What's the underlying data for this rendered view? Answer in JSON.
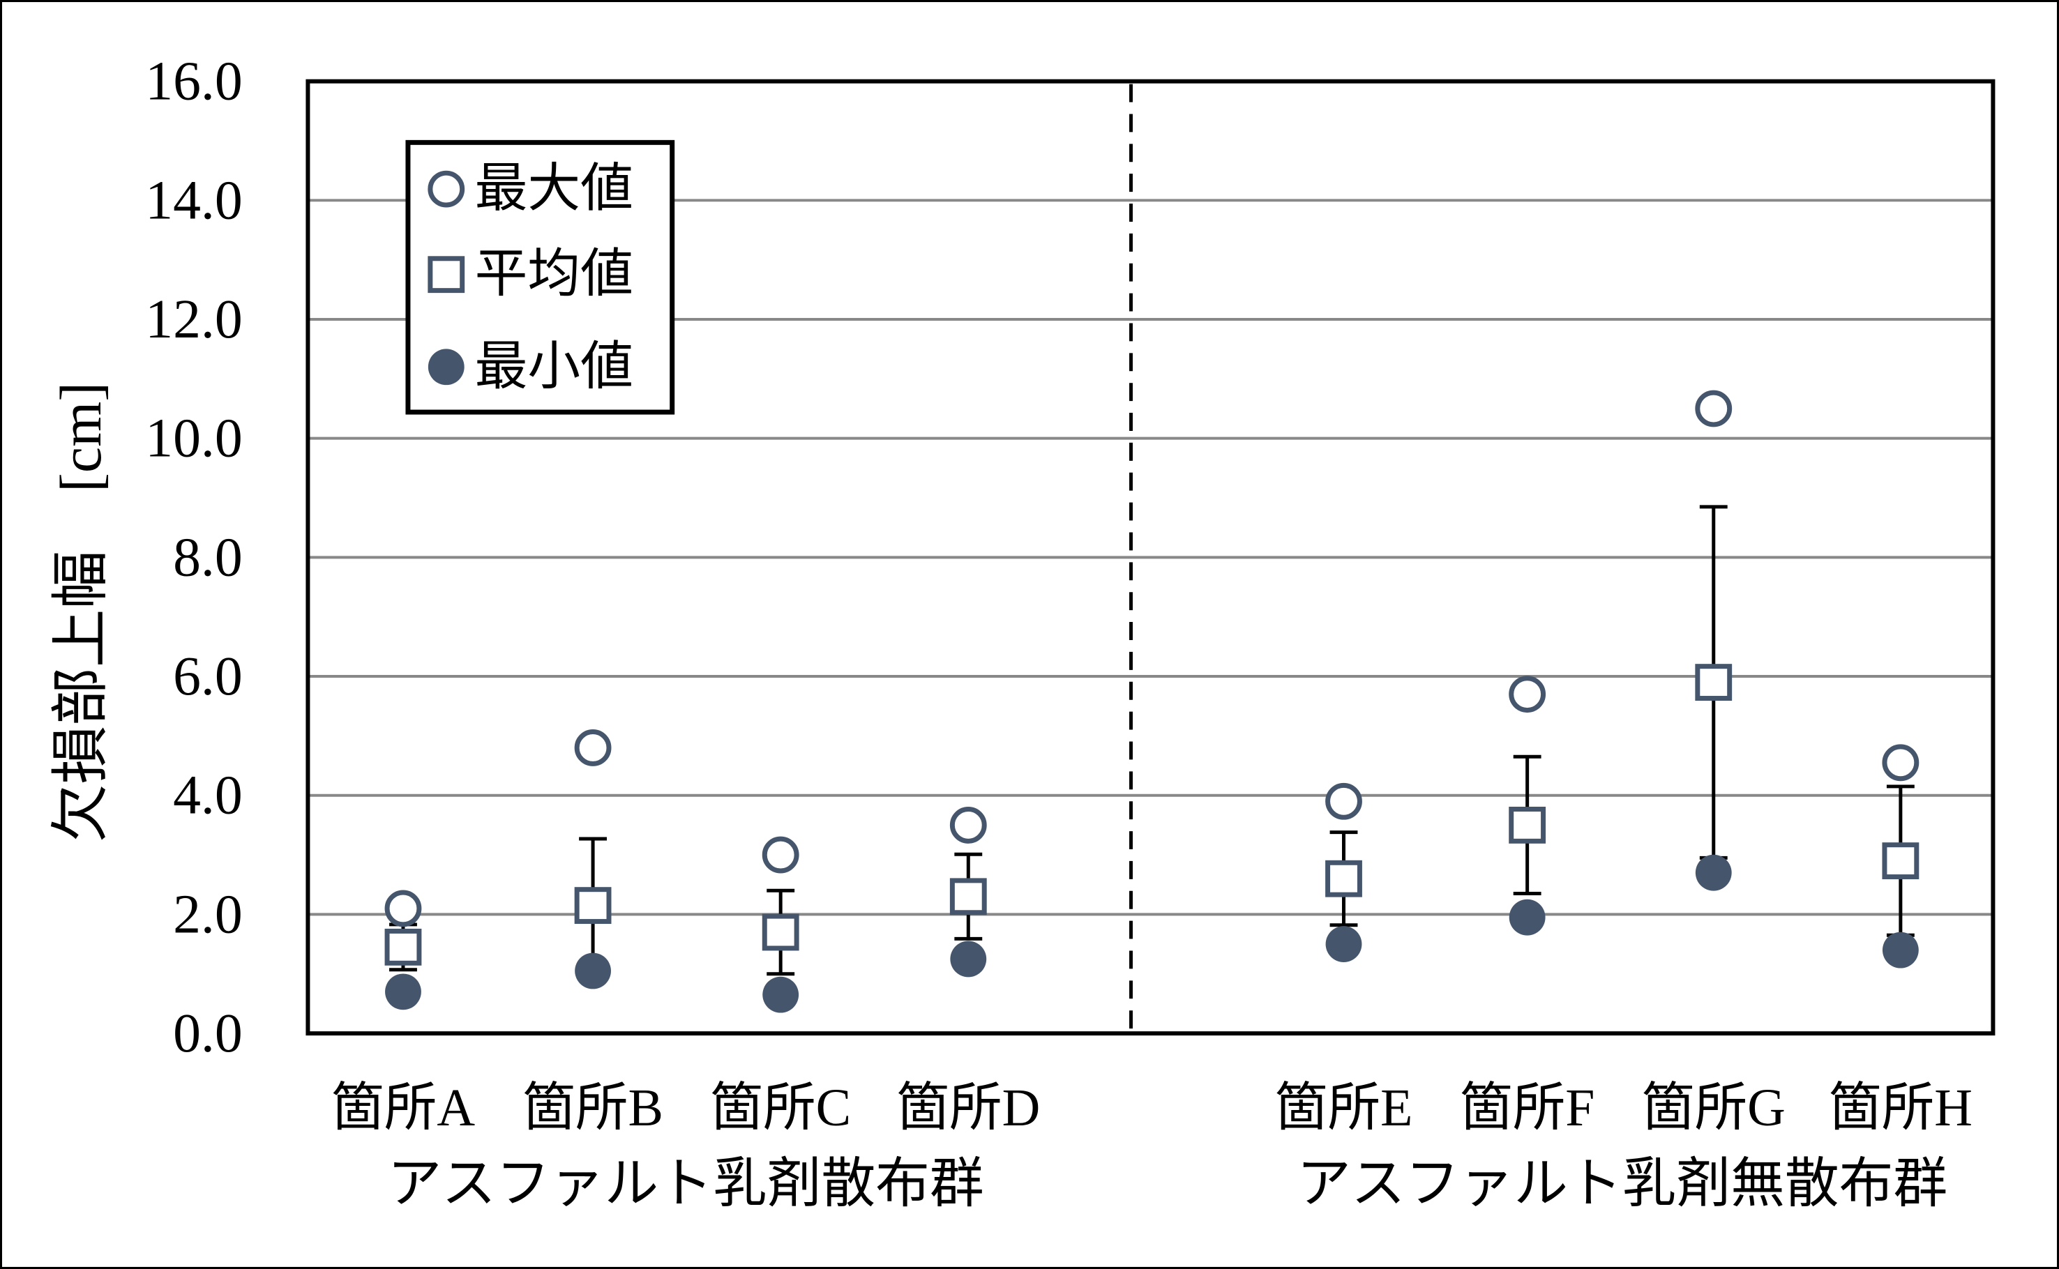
{
  "chart_data": {
    "type": "scatter",
    "title": "",
    "y_axis": {
      "label": "欠損部上幅　[cm]",
      "min": 0,
      "max": 16,
      "step": 2,
      "tick_labels": [
        "0.0",
        "2.0",
        "4.0",
        "6.0",
        "8.0",
        "10.0",
        "12.0",
        "14.0",
        "16.0"
      ]
    },
    "categories": [
      "箇所A",
      "箇所B",
      "箇所C",
      "箇所D",
      "箇所E",
      "箇所F",
      "箇所G",
      "箇所H"
    ],
    "groups": [
      {
        "label": "アスファルト乳剤散布群",
        "categories": [
          "箇所A",
          "箇所B",
          "箇所C",
          "箇所D"
        ]
      },
      {
        "label": "アスファルト乳剤無散布群",
        "categories": [
          "箇所E",
          "箇所F",
          "箇所G",
          "箇所H"
        ]
      }
    ],
    "series": [
      {
        "name": "最大値",
        "marker": "open-circle",
        "values": [
          2.1,
          4.8,
          3.0,
          3.5,
          3.9,
          5.7,
          10.5,
          4.55
        ]
      },
      {
        "name": "平均値",
        "marker": "open-square",
        "values": [
          1.45,
          2.15,
          1.7,
          2.3,
          2.6,
          3.5,
          5.9,
          2.9
        ]
      },
      {
        "name": "最小値",
        "marker": "filled-circle",
        "values": [
          0.7,
          1.05,
          0.65,
          1.25,
          1.5,
          1.95,
          2.7,
          1.4
        ]
      }
    ],
    "error_bars": {
      "attached_to": "平均値",
      "plus": [
        0.38,
        1.12,
        0.7,
        0.71,
        0.78,
        1.15,
        2.95,
        1.25
      ],
      "minus": [
        0.38,
        1.12,
        0.7,
        0.71,
        0.78,
        1.15,
        2.95,
        1.25
      ]
    },
    "divider": {
      "between": [
        "箇所D",
        "箇所E"
      ],
      "style": "dashed"
    },
    "legend": {
      "position": "top-left"
    },
    "grid": true,
    "ylim": [
      0,
      16
    ]
  },
  "colors": {
    "marker": "#45566C",
    "grid": "#888888",
    "axis": "#000000",
    "error_bar": "#000000",
    "background": "#ffffff"
  }
}
